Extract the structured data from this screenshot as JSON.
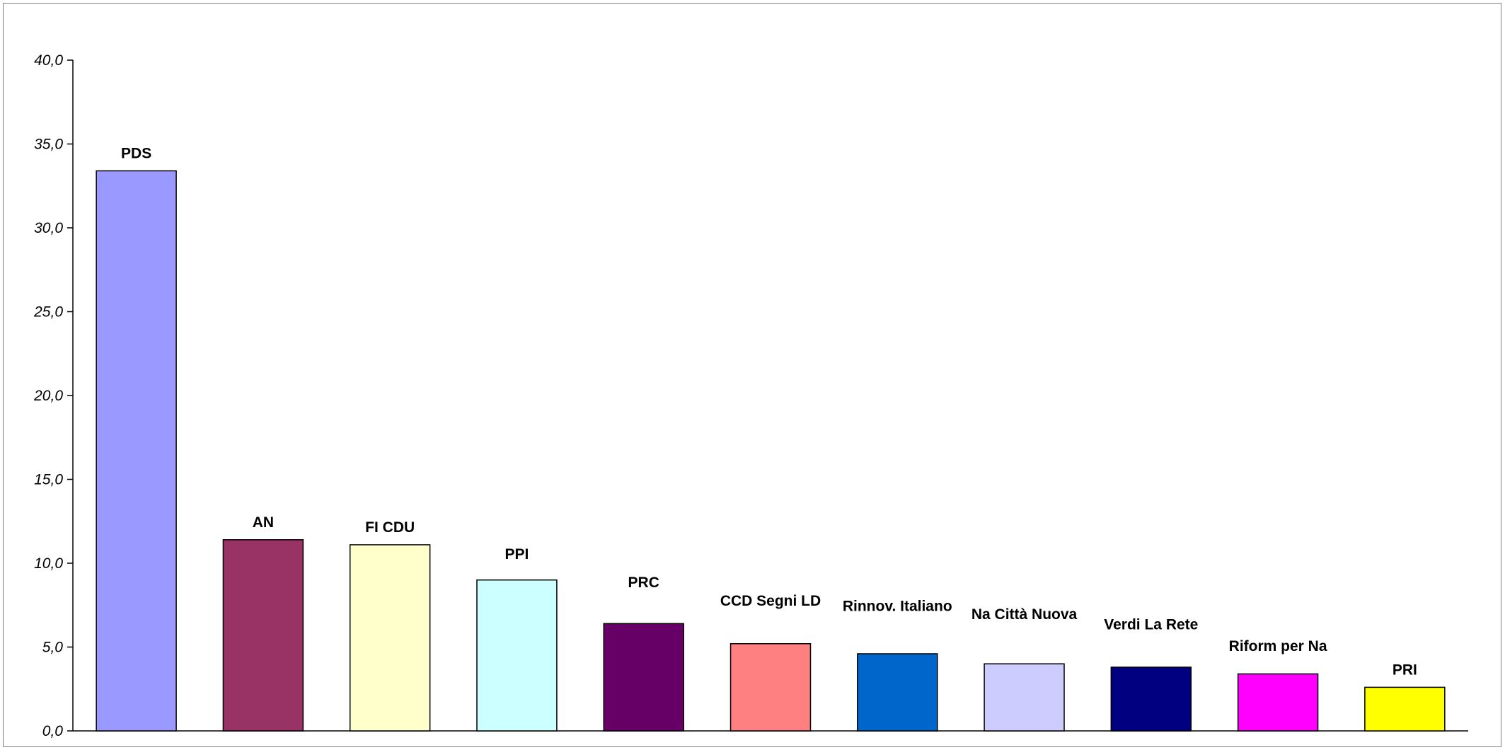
{
  "chart_data": {
    "type": "bar",
    "title": "",
    "xlabel": "",
    "ylabel": "",
    "ylim": [
      0,
      40
    ],
    "y_ticks": [
      0,
      5,
      10,
      15,
      20,
      25,
      30,
      35,
      40
    ],
    "y_tick_labels": [
      "0,0",
      "5,0",
      "10,0",
      "15,0",
      "20,0",
      "25,0",
      "30,0",
      "35,0",
      "40,0"
    ],
    "grid": false,
    "legend": "none",
    "categories": [
      "PDS",
      "AN",
      "FI CDU",
      "PPI",
      "PRC",
      "CCD Segni LD",
      "Rinnov. Italiano",
      "Na Città Nuova",
      "Verdi La Rete",
      "Riform per Na",
      "PRI"
    ],
    "values": [
      33.4,
      11.4,
      11.1,
      9.0,
      6.4,
      5.2,
      4.6,
      4.0,
      3.8,
      3.4,
      2.6
    ],
    "colors": [
      "#9999ff",
      "#993366",
      "#ffffcc",
      "#ccffff",
      "#660066",
      "#ff8080",
      "#0066cc",
      "#ccccff",
      "#000080",
      "#ff00ff",
      "#ffff00"
    ],
    "label_offsets": [
      0,
      0,
      0,
      0.5,
      1.4,
      1.5,
      1.8,
      1.9,
      1.5,
      0.6,
      0
    ]
  }
}
